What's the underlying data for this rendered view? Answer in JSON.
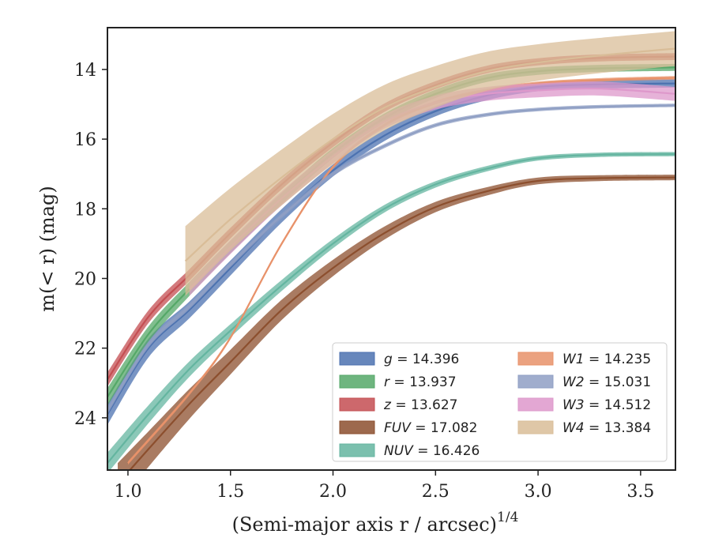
{
  "chart_data": {
    "type": "line",
    "xlabel": "(Semi-major axis r / arcsec)",
    "xlabel_sup": "1/4",
    "ylabel": "m(< r) (mag)",
    "xlim": [
      0.9,
      3.67
    ],
    "ylim": [
      25.5,
      12.8
    ],
    "y_inverted": true,
    "xticks": [
      "1.0",
      "1.5",
      "2.0",
      "2.5",
      "3.0",
      "3.5"
    ],
    "yticks": [
      "14",
      "16",
      "18",
      "20",
      "22",
      "24"
    ],
    "legend_position": "lower-right",
    "series": [
      {
        "name": "g = 14.396",
        "sym": "g",
        "value": "14.396",
        "color": "#4c72b0",
        "x": [
          0.9,
          1.1,
          1.3,
          1.5,
          1.75,
          2.0,
          2.25,
          2.5,
          2.75,
          3.0,
          3.3,
          3.67
        ],
        "y": [
          23.9,
          22.0,
          20.9,
          19.7,
          18.2,
          16.9,
          15.9,
          15.2,
          14.75,
          14.5,
          14.43,
          14.4
        ],
        "band": 0.12,
        "band_left": 0.3
      },
      {
        "name": "r = 13.937",
        "sym": "r",
        "value": "13.937",
        "color": "#55a868",
        "x": [
          0.9,
          1.1,
          1.3,
          1.5,
          1.75,
          2.0,
          2.25,
          2.5,
          2.75,
          3.0,
          3.3,
          3.67
        ],
        "y": [
          23.4,
          21.6,
          20.3,
          19.1,
          17.7,
          16.4,
          15.4,
          14.7,
          14.25,
          14.05,
          13.97,
          13.94
        ],
        "band": 0.1,
        "band_left": 0.25
      },
      {
        "name": "z = 13.627",
        "sym": "z",
        "value": "13.627",
        "color": "#c44e52",
        "x": [
          0.9,
          1.1,
          1.3,
          1.5,
          1.75,
          2.0,
          2.25,
          2.5,
          2.75,
          3.0,
          3.3,
          3.67
        ],
        "y": [
          22.9,
          21.1,
          19.9,
          18.7,
          17.3,
          16.1,
          15.1,
          14.45,
          14.0,
          13.78,
          13.67,
          13.63
        ],
        "band": 0.1,
        "band_left": 0.2
      },
      {
        "name": "FUV = 17.082",
        "sym": "FUV",
        "value": "17.082",
        "color": "#8c4f2e",
        "x": [
          0.95,
          1.1,
          1.3,
          1.5,
          1.75,
          2.0,
          2.25,
          2.5,
          2.75,
          3.0,
          3.3,
          3.67
        ],
        "y": [
          25.9,
          24.9,
          23.6,
          22.4,
          20.9,
          19.7,
          18.7,
          17.95,
          17.5,
          17.2,
          17.12,
          17.1
        ],
        "band": 0.08,
        "band_left": 0.6
      },
      {
        "name": "NUV = 16.426",
        "sym": "NUV",
        "value": "16.426",
        "color": "#64b5a0",
        "x": [
          0.9,
          1.1,
          1.3,
          1.5,
          1.75,
          2.0,
          2.25,
          2.5,
          2.75,
          3.0,
          3.3,
          3.67
        ],
        "y": [
          25.3,
          23.9,
          22.6,
          21.5,
          20.2,
          19.0,
          18.0,
          17.3,
          16.85,
          16.55,
          16.45,
          16.43
        ],
        "band": 0.06,
        "band_left": 0.3
      },
      {
        "name": "W1 = 14.235",
        "sym": "W1",
        "value": "14.235",
        "color": "#e8926a",
        "x": [
          1.0,
          1.3,
          1.5,
          1.75,
          2.0,
          2.25,
          2.5,
          2.75,
          3.0,
          3.3,
          3.67
        ],
        "y": [
          25.3,
          23.3,
          21.7,
          19.0,
          16.8,
          15.6,
          14.95,
          14.6,
          14.4,
          14.3,
          14.24
        ],
        "band": 0.05,
        "band_left": 0.05
      },
      {
        "name": "W2 = 15.031",
        "sym": "W2",
        "value": "15.031",
        "color": "#8f9fc4",
        "x": [
          0.9,
          1.1,
          1.3,
          1.5,
          1.75,
          2.0,
          2.25,
          2.5,
          2.75,
          3.0,
          3.3,
          3.67
        ],
        "y": [
          23.8,
          21.9,
          20.8,
          19.6,
          18.2,
          17.0,
          16.2,
          15.6,
          15.3,
          15.15,
          15.07,
          15.03
        ],
        "band": 0.05,
        "band_left": 0.1
      },
      {
        "name": "W3 = 14.512",
        "sym": "W3",
        "value": "14.512",
        "color": "#de98cb",
        "x": [
          1.3,
          1.5,
          1.75,
          2.0,
          2.25,
          2.5,
          2.75,
          3.0,
          3.3,
          3.67
        ],
        "y": [
          20.3,
          19.1,
          17.7,
          16.5,
          15.5,
          14.95,
          14.7,
          14.6,
          14.55,
          14.7
        ],
        "band": 0.2,
        "band_left": 0.2
      },
      {
        "name": "W4 = 13.384",
        "sym": "W4",
        "value": "13.384",
        "color": "#d9bd98",
        "x": [
          1.28,
          1.5,
          1.75,
          2.0,
          2.25,
          2.5,
          2.75,
          3.0,
          3.3,
          3.67
        ],
        "y": [
          19.5,
          18.3,
          17.1,
          16.0,
          15.1,
          14.5,
          14.05,
          13.8,
          13.6,
          13.4
        ],
        "band": 0.5,
        "band_left": 1.0
      }
    ]
  }
}
